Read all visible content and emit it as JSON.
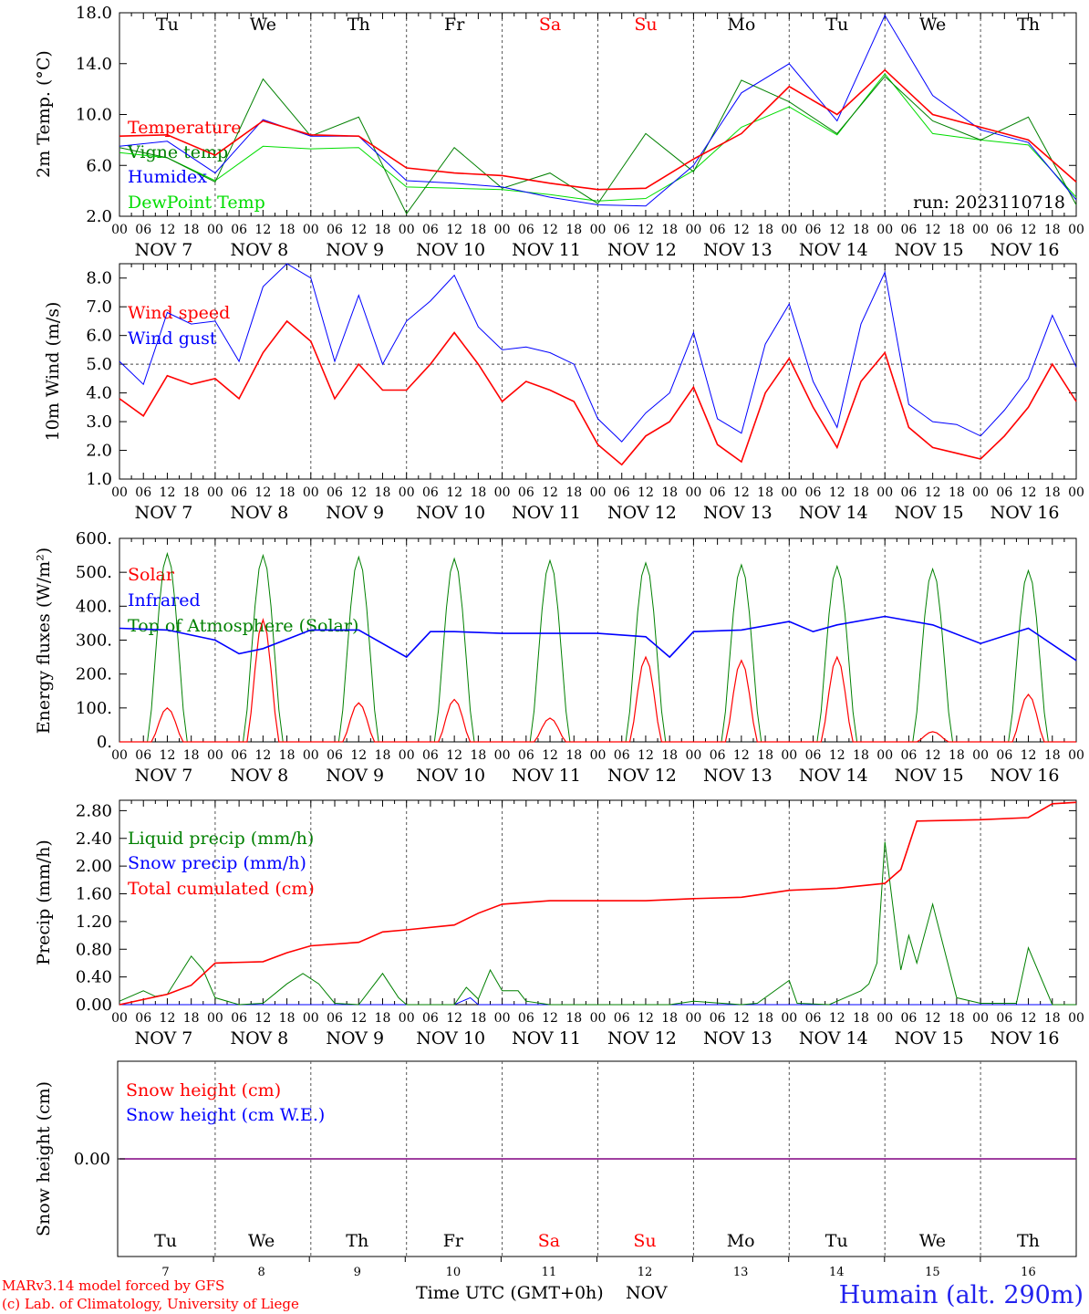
{
  "hours": [
    "00",
    "06",
    "12",
    "18"
  ],
  "day_axis": [
    {
      "day": "7",
      "label": "NOV  7"
    },
    {
      "day": "8",
      "label": "NOV  8"
    },
    {
      "day": "9",
      "label": "NOV  9"
    },
    {
      "day": "10",
      "label": "NOV 10"
    },
    {
      "day": "11",
      "label": "NOV 11"
    },
    {
      "day": "12",
      "label": "NOV 12"
    },
    {
      "day": "13",
      "label": "NOV 13"
    },
    {
      "day": "14",
      "label": "NOV 14"
    },
    {
      "day": "15",
      "label": "NOV 15"
    },
    {
      "day": "16",
      "label": "NOV 16"
    }
  ],
  "weekdays": [
    {
      "name": "Tu",
      "weekend": false
    },
    {
      "name": "We",
      "weekend": false
    },
    {
      "name": "Th",
      "weekend": false
    },
    {
      "name": "Fr",
      "weekend": false
    },
    {
      "name": "Sa",
      "weekend": true
    },
    {
      "name": "Su",
      "weekend": true
    },
    {
      "name": "Mo",
      "weekend": false
    },
    {
      "name": "Tu",
      "weekend": false
    },
    {
      "name": "We",
      "weekend": false
    },
    {
      "name": "Th",
      "weekend": false
    }
  ],
  "footer": {
    "model": "MARv3.14 model forced by GFS",
    "copyright": "(c) Lab. of Climatology, University of Liege",
    "xlabel": "Time UTC (GMT+0h)",
    "month": "NOV",
    "station": "Humain (alt. 290m)"
  },
  "colors": {
    "red": "#ff0000",
    "green": "#008000",
    "blue": "#0000ff",
    "lightgreen": "#00dd00",
    "weekend": "#ff0000",
    "station": "#2222ee",
    "purple": "#800080"
  },
  "chart_data": [
    {
      "type": "line",
      "ylabel": "2m Temp. (°C)",
      "ylim": [
        2,
        18
      ],
      "yticks": [
        "2.0",
        "6.0",
        "10.0",
        "14.0",
        "18.0"
      ],
      "annotation": "run: 2023110718",
      "x_unit": "hours since 2023-11-07 00 UTC",
      "series": [
        {
          "name": "Temperature",
          "color": "red",
          "x": [
            0,
            12,
            24,
            36,
            48,
            60,
            72,
            84,
            96,
            108,
            120,
            132,
            144,
            156,
            168,
            180,
            192,
            204,
            216,
            228,
            240
          ],
          "values": [
            8.3,
            8.4,
            6.8,
            9.5,
            8.4,
            8.3,
            5.8,
            5.4,
            5.2,
            4.6,
            4.1,
            4.2,
            6.5,
            8.5,
            12.2,
            10.0,
            13.5,
            10.0,
            9.0,
            8.0,
            4.7
          ]
        },
        {
          "name": "Vigne temp",
          "color": "green",
          "x": [
            0,
            12,
            24,
            36,
            48,
            60,
            72,
            84,
            96,
            108,
            120,
            132,
            144,
            156,
            168,
            180,
            192,
            204,
            216,
            228,
            240
          ],
          "values": [
            7.4,
            6.6,
            4.7,
            12.8,
            8.3,
            9.8,
            2.2,
            7.4,
            4.2,
            5.4,
            3.0,
            8.5,
            5.5,
            12.7,
            11.0,
            8.5,
            13.0,
            9.5,
            8.0,
            9.8,
            2.9
          ]
        },
        {
          "name": "Humidex",
          "color": "blue",
          "x": [
            0,
            12,
            24,
            36,
            48,
            60,
            72,
            84,
            96,
            108,
            120,
            132,
            144,
            156,
            168,
            180,
            192,
            204,
            216,
            228,
            240
          ],
          "values": [
            7.5,
            7.9,
            5.4,
            9.6,
            8.3,
            8.3,
            4.8,
            4.6,
            4.3,
            3.5,
            2.9,
            2.8,
            6.0,
            11.7,
            14.0,
            9.5,
            17.8,
            11.5,
            8.8,
            7.8,
            3.3
          ]
        },
        {
          "name": "DewPoint Temp",
          "color": "lightgreen",
          "x": [
            0,
            12,
            24,
            36,
            48,
            60,
            72,
            84,
            96,
            108,
            120,
            132,
            144,
            156,
            168,
            180,
            192,
            204,
            216,
            228,
            240
          ],
          "values": [
            7.0,
            6.6,
            4.8,
            7.5,
            7.3,
            7.4,
            4.3,
            4.2,
            4.1,
            3.7,
            3.2,
            3.4,
            5.6,
            9.0,
            10.6,
            8.4,
            13.2,
            8.5,
            8.0,
            7.6,
            3.5
          ]
        }
      ]
    },
    {
      "type": "line",
      "ylabel": "10m Wind (m/s)",
      "ylim": [
        1,
        8.5
      ],
      "yticks": [
        "1.0",
        "2.0",
        "3.0",
        "4.0",
        "5.0",
        "6.0",
        "7.0",
        "8.0"
      ],
      "reference_line": 5.0,
      "x_unit": "hours since 2023-11-07 00 UTC",
      "series": [
        {
          "name": "Wind speed",
          "color": "red",
          "x": [
            0,
            6,
            12,
            18,
            24,
            30,
            36,
            42,
            48,
            54,
            60,
            66,
            72,
            78,
            84,
            90,
            96,
            102,
            108,
            114,
            120,
            126,
            132,
            138,
            144,
            150,
            156,
            162,
            168,
            174,
            180,
            186,
            192,
            198,
            204,
            210,
            216,
            222,
            228,
            234,
            240
          ],
          "values": [
            3.8,
            3.2,
            4.6,
            4.3,
            4.5,
            3.8,
            5.4,
            6.5,
            5.8,
            3.8,
            5.0,
            4.1,
            4.1,
            5.0,
            6.1,
            5.0,
            3.7,
            4.4,
            4.1,
            3.7,
            2.2,
            1.5,
            2.5,
            3.0,
            4.2,
            2.2,
            1.6,
            4.0,
            5.2,
            3.5,
            2.1,
            4.4,
            5.4,
            2.8,
            2.1,
            1.9,
            1.7,
            2.5,
            3.5,
            5.0,
            3.7
          ]
        },
        {
          "name": "Wind gust",
          "color": "blue",
          "x": [
            0,
            6,
            12,
            18,
            24,
            30,
            36,
            42,
            48,
            54,
            60,
            66,
            72,
            78,
            84,
            90,
            96,
            102,
            108,
            114,
            120,
            126,
            132,
            138,
            144,
            150,
            156,
            162,
            168,
            174,
            180,
            186,
            192,
            198,
            204,
            210,
            216,
            222,
            228,
            234,
            240
          ],
          "values": [
            5.1,
            4.3,
            6.8,
            6.4,
            6.5,
            5.1,
            7.7,
            8.5,
            8.0,
            5.1,
            7.4,
            5.0,
            6.5,
            7.2,
            8.1,
            6.3,
            5.5,
            5.6,
            5.4,
            5.0,
            3.1,
            2.3,
            3.3,
            4.0,
            6.1,
            3.1,
            2.6,
            5.7,
            7.1,
            4.4,
            2.8,
            6.4,
            8.2,
            3.6,
            3.0,
            2.9,
            2.5,
            3.4,
            4.5,
            6.7,
            4.9
          ]
        }
      ]
    },
    {
      "type": "line",
      "ylabel": "Energy fluxes (W/m²)",
      "ylim": [
        0,
        600
      ],
      "yticks": [
        "0.",
        "100.",
        "200.",
        "300.",
        "400.",
        "500.",
        "600."
      ],
      "x_unit": "hours since 2023-11-07 00 UTC",
      "day_peaks": {
        "solar": [
          100,
          360,
          115,
          125,
          70,
          250,
          240,
          250,
          30,
          140
        ],
        "top_of_atmosphere": [
          555,
          550,
          545,
          540,
          535,
          528,
          522,
          518,
          510,
          505
        ]
      },
      "series": [
        {
          "name": "Solar",
          "color": "red"
        },
        {
          "name": "Infrared",
          "color": "blue",
          "x": [
            0,
            12,
            24,
            30,
            36,
            48,
            60,
            72,
            78,
            84,
            96,
            108,
            120,
            132,
            138,
            144,
            156,
            168,
            174,
            180,
            192,
            204,
            216,
            228,
            240
          ],
          "values": [
            335,
            330,
            300,
            260,
            275,
            330,
            330,
            250,
            325,
            325,
            320,
            320,
            320,
            310,
            250,
            325,
            330,
            355,
            325,
            345,
            370,
            345,
            290,
            335,
            240
          ]
        },
        {
          "name": "Top of Atmosphere (Solar)",
          "color": "green"
        }
      ]
    },
    {
      "type": "line",
      "ylabel": "Precip (mm/h)",
      "ylim": [
        0,
        2.95
      ],
      "yticks": [
        "0.00",
        "0.40",
        "0.80",
        "1.20",
        "1.60",
        "2.00",
        "2.40",
        "2.80"
      ],
      "x_unit": "hours since 2023-11-07 00 UTC",
      "series": [
        {
          "name": "Liquid precip (mm/h)",
          "color": "green",
          "x": [
            0,
            6,
            9,
            12,
            18,
            21,
            24,
            30,
            36,
            42,
            46,
            50,
            54,
            60,
            66,
            70,
            72,
            78,
            84,
            87,
            90,
            93,
            96,
            100,
            102,
            108,
            120,
            138,
            144,
            156,
            160,
            168,
            170,
            178,
            180,
            186,
            188,
            190,
            192,
            196,
            198,
            200,
            204,
            210,
            216,
            220,
            225,
            228,
            234,
            240
          ],
          "values": [
            0.05,
            0.2,
            0.12,
            0.15,
            0.7,
            0.5,
            0.1,
            0.0,
            0.02,
            0.3,
            0.45,
            0.3,
            0.02,
            0.0,
            0.45,
            0.1,
            0.0,
            0.0,
            0.0,
            0.25,
            0.08,
            0.5,
            0.2,
            0.2,
            0.05,
            0.0,
            0.0,
            0.0,
            0.05,
            0.0,
            0.02,
            0.35,
            0.02,
            0.0,
            0.05,
            0.2,
            0.3,
            0.6,
            2.35,
            0.5,
            1.0,
            0.6,
            1.45,
            0.1,
            0.02,
            0.02,
            0.02,
            0.82,
            0.0,
            0.0
          ]
        },
        {
          "name": "Snow precip (mm/h)",
          "color": "blue",
          "x": [
            0,
            84,
            88,
            90,
            96,
            120,
            240
          ],
          "values": [
            0.0,
            0.0,
            0.1,
            0.0,
            0.0,
            0.0,
            0.0
          ]
        },
        {
          "name": "Total cumulated (cm)",
          "color": "red",
          "x": [
            0,
            12,
            18,
            24,
            36,
            42,
            48,
            60,
            66,
            72,
            84,
            90,
            96,
            108,
            120,
            132,
            144,
            156,
            168,
            180,
            192,
            196,
            200,
            216,
            228,
            234,
            240
          ],
          "values": [
            0.0,
            0.15,
            0.28,
            0.6,
            0.62,
            0.75,
            0.85,
            0.9,
            1.05,
            1.08,
            1.15,
            1.32,
            1.45,
            1.5,
            1.5,
            1.5,
            1.53,
            1.55,
            1.65,
            1.68,
            1.75,
            1.95,
            2.65,
            2.67,
            2.7,
            2.9,
            2.92
          ]
        }
      ]
    },
    {
      "type": "line",
      "ylabel": "Snow height (cm)",
      "yticks": [
        "0.00"
      ],
      "series": [
        {
          "name": "Snow height (cm)",
          "color": "red",
          "x": [
            0,
            240
          ],
          "values": [
            0,
            0
          ]
        },
        {
          "name": "Snow height (cm W.E.)",
          "color": "blue",
          "x": [
            0,
            240
          ],
          "values": [
            0,
            0
          ]
        }
      ]
    }
  ]
}
